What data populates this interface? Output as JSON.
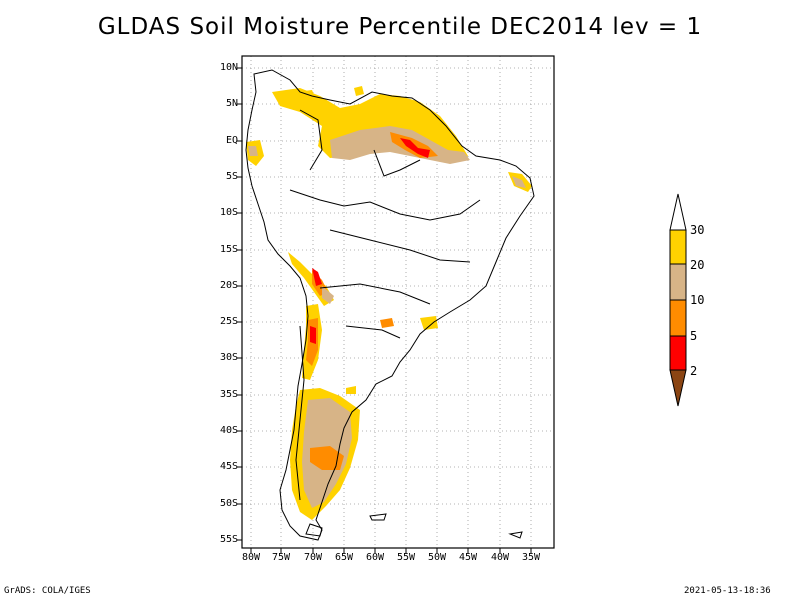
{
  "title": "GLDAS Soil Moisture Percentile DEC2014 lev = 1",
  "y_ticks": [
    "10N",
    "5N",
    "EQ",
    "5S",
    "10S",
    "15S",
    "20S",
    "25S",
    "30S",
    "35S",
    "40S",
    "45S",
    "50S",
    "55S"
  ],
  "x_ticks": [
    "80W",
    "75W",
    "70W",
    "65W",
    "60W",
    "55W",
    "50W",
    "45W",
    "40W",
    "35W"
  ],
  "legend": {
    "labels": [
      "30",
      "20",
      "10",
      "5",
      "2"
    ],
    "colors": {
      "above_30": "#ffffff",
      "c20_30": "#ffd200",
      "c10_20": "#d7b487",
      "c5_10": "#ff8c00",
      "c2_5": "#ff0000",
      "below_2": "#8b4513"
    }
  },
  "footer": {
    "left": "GrADS: COLA/IGES",
    "right": "2021-05-13-18:36"
  }
}
